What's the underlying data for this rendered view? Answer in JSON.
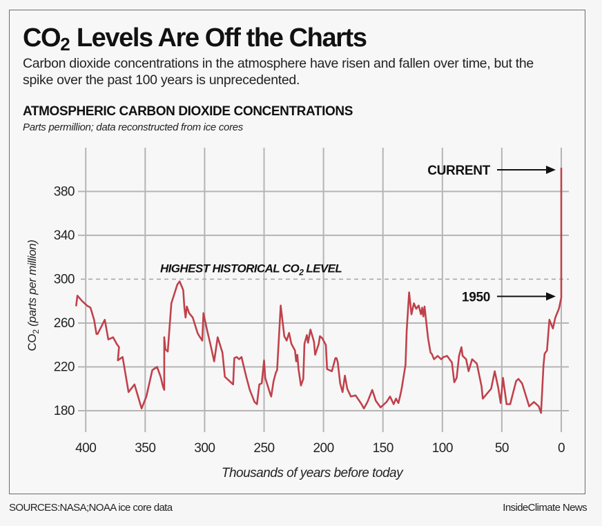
{
  "header": {
    "title_main": "CO",
    "title_sub": "2",
    "title_rest": " Levels Are Off the Charts",
    "subtitle": "Carbon dioxide concentrations in the atmosphere have risen and fallen over time, but the spike over the past 100 years is unprecedented.",
    "chart_heading": "ATMOSPHERIC CARBON DIOXIDE CONCENTRATIONS",
    "chart_subheading": "Parts permillion; data reconstructed from ice cores"
  },
  "footer": {
    "sources": "SOURCES:NASA;NOAA ice core data",
    "credit": "InsideClimate News"
  },
  "colors": {
    "line": "#c0414b",
    "grid": "#b4b4b4",
    "text": "#111111"
  },
  "chart_data": {
    "type": "line",
    "title": "ATMOSPHERIC CARBON DIOXIDE CONCENTRATIONS",
    "subtitle": "Parts permillion; data reconstructed from ice cores",
    "xlabel": "Thousands of years before today",
    "ylabel_main": "CO",
    "ylabel_sub": "2",
    "ylabel_rest": " (parts per million)",
    "xlim": [
      408,
      0
    ],
    "ylim": [
      162,
      412
    ],
    "x_ticks": [
      400,
      350,
      300,
      250,
      200,
      150,
      100,
      50,
      0
    ],
    "y_ticks": [
      180,
      220,
      260,
      300,
      340,
      380
    ],
    "grid": true,
    "reference_line": {
      "y": 300,
      "label_main": "HIGHEST HISTORICAL CO",
      "label_sub": "2",
      "label_rest": " LEVEL",
      "style": "dashed"
    },
    "annotations": [
      {
        "label": "CURRENT",
        "x": 0,
        "y": 401
      },
      {
        "label": "1950",
        "x": 0,
        "y": 283
      }
    ],
    "series": [
      {
        "name": "CO2 (ppm)",
        "x": [
          408,
          407,
          403,
          399,
          396,
          393,
          391,
          390,
          384,
          381,
          377,
          374,
          372,
          373,
          369,
          364,
          359,
          353,
          349,
          344,
          340,
          337,
          335,
          334,
          334,
          333,
          331,
          328,
          323,
          321,
          318,
          317,
          316,
          315,
          313,
          310,
          306,
          305,
          302,
          301,
          298,
          295,
          292,
          289,
          285,
          283,
          276,
          275,
          273,
          271,
          269,
          265,
          262,
          258,
          256,
          254,
          252,
          250,
          249,
          245,
          244,
          242,
          240,
          239,
          236,
          233,
          231,
          229,
          227,
          224,
          223,
          222,
          221,
          219,
          217,
          216,
          214,
          213,
          211,
          208,
          207,
          204,
          203,
          201,
          198,
          197,
          193,
          190,
          189,
          188,
          186,
          184,
          182,
          180,
          177,
          173,
          168,
          166,
          163,
          159,
          156,
          152,
          147,
          144,
          141,
          139,
          137,
          135,
          134,
          131,
          130,
          128,
          126,
          124,
          122,
          120,
          118,
          117,
          116,
          115,
          114,
          112,
          110,
          109,
          107,
          104,
          101,
          99,
          96,
          92,
          90,
          88,
          86,
          84,
          83,
          80,
          78,
          75,
          71,
          67,
          66,
          59,
          56,
          53,
          51,
          49,
          46,
          43,
          38,
          36,
          33,
          27,
          23,
          19,
          17,
          15,
          14,
          12,
          10,
          7,
          5,
          2,
          0,
          0
        ],
        "y": [
          276,
          285,
          280,
          276,
          274,
          263,
          250,
          250,
          263,
          245,
          247,
          241,
          238,
          226,
          229,
          197,
          204,
          182,
          193,
          217,
          220,
          211,
          202,
          199,
          247,
          236,
          234,
          278,
          295,
          298,
          290,
          274,
          265,
          275,
          269,
          265,
          251,
          249,
          244,
          269,
          254,
          240,
          225,
          247,
          233,
          211,
          204,
          228,
          229,
          227,
          229,
          211,
          199,
          188,
          186,
          204,
          205,
          226,
          210,
          196,
          193,
          207,
          215,
          217,
          276,
          248,
          244,
          251,
          241,
          235,
          225,
          231,
          218,
          203,
          209,
          241,
          249,
          242,
          254,
          243,
          231,
          241,
          248,
          246,
          240,
          218,
          216,
          228,
          228,
          224,
          205,
          197,
          212,
          200,
          193,
          194,
          186,
          182,
          188,
          199,
          189,
          183,
          188,
          193,
          186,
          191,
          187,
          196,
          202,
          222,
          253,
          288,
          268,
          278,
          273,
          276,
          268,
          274,
          266,
          275,
          265,
          246,
          233,
          232,
          227,
          230,
          227,
          229,
          230,
          224,
          206,
          210,
          230,
          238,
          230,
          227,
          216,
          227,
          223,
          202,
          191,
          200,
          216,
          201,
          187,
          210,
          186,
          186,
          207,
          209,
          205,
          184,
          188,
          184,
          178,
          221,
          232,
          235,
          263,
          255,
          265,
          273,
          283,
          401
        ]
      }
    ]
  }
}
